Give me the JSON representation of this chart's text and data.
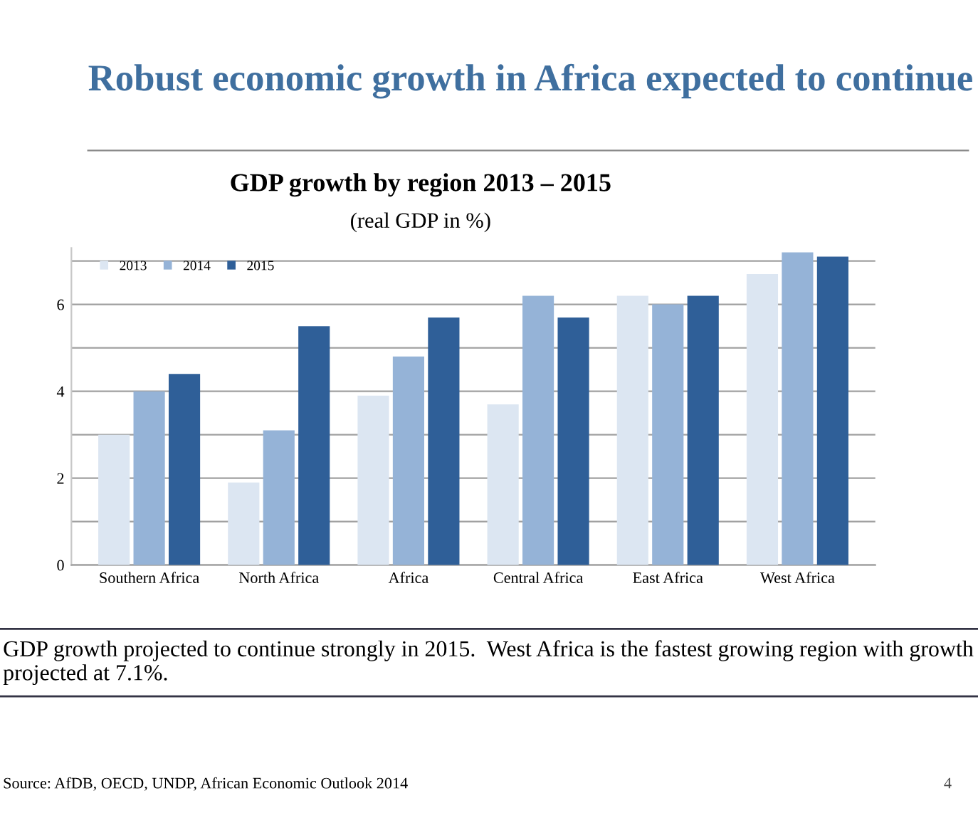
{
  "chart_data": {
    "type": "bar",
    "title": "Robust economic growth in Africa expected to continue",
    "subtitle": "GDP growth by region 2013 – 2015",
    "categories": [
      "Southern Africa",
      "North Africa",
      "Africa",
      "Central Africa",
      "East Africa",
      "West Africa"
    ],
    "series": [
      {
        "name": "2013",
        "color": "#dce6f2",
        "values": [
          3.0,
          1.9,
          3.9,
          3.7,
          6.2,
          6.7
        ]
      },
      {
        "name": "2014",
        "color": "#95b3d7",
        "values": [
          4.0,
          3.1,
          4.8,
          6.2,
          6.0,
          7.2
        ]
      },
      {
        "name": "2015",
        "color": "#2f5f98",
        "values": [
          4.4,
          5.5,
          5.7,
          5.7,
          6.2,
          7.1
        ]
      }
    ],
    "ylim": [
      0,
      7.3
    ],
    "yticks": [
      0,
      {
        "value": 1,
        "label": null
      },
      2,
      {
        "value": 3,
        "label": null
      },
      4,
      {
        "value": 5,
        "label": null
      },
      6,
      {
        "value": 7,
        "label": null
      }
    ],
    "grid": "y",
    "legend": "top left",
    "annotations": [
      "(real GDP in %)",
      "GDP growth projected to continue strongly in 2015.  West Africa is the fastest growing region with growth projected at 7.1%.",
      "Source: AfDB, OECD, UNDP, African Economic Outlook 2014",
      "4"
    ]
  }
}
